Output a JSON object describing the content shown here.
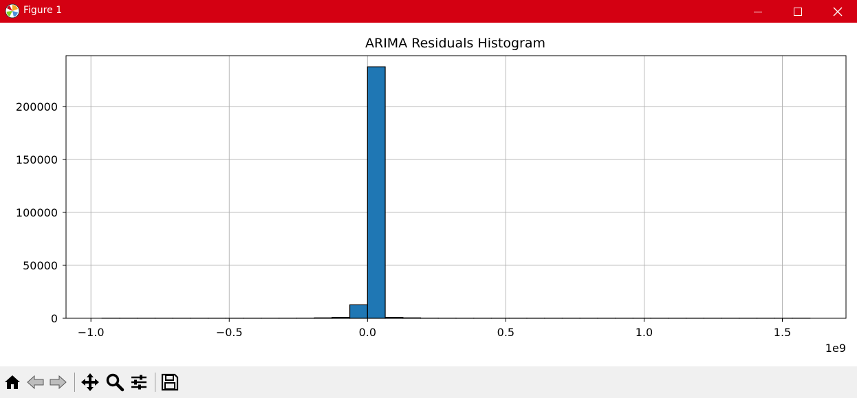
{
  "window": {
    "title": "Figure 1"
  },
  "titlebar_icons": [
    "matplotlib-logo-icon",
    "minimize-icon",
    "maximize-icon",
    "close-icon"
  ],
  "toolbar": {
    "buttons": [
      "home-icon",
      "back-arrow-icon",
      "forward-arrow-icon",
      "pan-icon",
      "zoom-magnifier-icon",
      "configure-subplots-icon",
      "save-disk-icon"
    ]
  },
  "colors": {
    "titlebar": "#d40012",
    "bar_fill": "#1f77b4",
    "bar_edge": "#000000",
    "grid": "#b0b0b0"
  },
  "chart_data": {
    "type": "bar",
    "title": "ARIMA Residuals Histogram",
    "xlabel": "",
    "ylabel": "",
    "x_offset_label": "1e9",
    "xlim": [
      -1.09,
      1.73
    ],
    "ylim": [
      0,
      248000
    ],
    "grid": true,
    "xticks": [
      -1.0,
      -0.5,
      0.0,
      0.5,
      1.0,
      1.5
    ],
    "xtick_labels": [
      "−1.0",
      "−0.5",
      "0.0",
      "0.5",
      "1.0",
      "1.5"
    ],
    "yticks": [
      0,
      50000,
      100000,
      150000,
      200000
    ],
    "ytick_labels": [
      "0",
      "50000",
      "100000",
      "150000",
      "200000"
    ],
    "bins": [
      [
        -0.96,
        -0.896,
        20
      ],
      [
        -0.896,
        -0.832,
        10
      ],
      [
        -0.832,
        -0.768,
        10
      ],
      [
        -0.768,
        -0.704,
        10
      ],
      [
        -0.704,
        -0.64,
        10
      ],
      [
        -0.64,
        -0.576,
        10
      ],
      [
        -0.576,
        -0.512,
        10
      ],
      [
        -0.512,
        -0.448,
        10
      ],
      [
        -0.448,
        -0.384,
        10
      ],
      [
        -0.384,
        -0.32,
        10
      ],
      [
        -0.32,
        -0.256,
        20
      ],
      [
        -0.256,
        -0.192,
        50
      ],
      [
        -0.192,
        -0.128,
        400
      ],
      [
        -0.128,
        -0.064,
        900
      ],
      [
        -0.064,
        0.0,
        12700
      ],
      [
        0.0,
        0.064,
        237500
      ],
      [
        0.064,
        0.128,
        900
      ],
      [
        0.128,
        0.192,
        400
      ],
      [
        0.192,
        0.256,
        50
      ],
      [
        0.256,
        0.32,
        20
      ],
      [
        0.32,
        0.384,
        10
      ],
      [
        0.384,
        0.448,
        10
      ],
      [
        0.448,
        0.512,
        10
      ],
      [
        0.512,
        0.576,
        10
      ],
      [
        0.576,
        0.64,
        10
      ],
      [
        0.64,
        0.704,
        10
      ],
      [
        0.704,
        0.768,
        10
      ],
      [
        0.768,
        0.832,
        10
      ],
      [
        0.832,
        0.896,
        10
      ],
      [
        0.896,
        0.96,
        10
      ],
      [
        0.96,
        1.024,
        10
      ],
      [
        1.024,
        1.088,
        10
      ],
      [
        1.088,
        1.152,
        10
      ],
      [
        1.152,
        1.216,
        10
      ],
      [
        1.216,
        1.28,
        10
      ],
      [
        1.28,
        1.344,
        10
      ],
      [
        1.344,
        1.408,
        10
      ],
      [
        1.408,
        1.472,
        10
      ],
      [
        1.472,
        1.536,
        10
      ],
      [
        1.536,
        1.6,
        20
      ]
    ]
  }
}
